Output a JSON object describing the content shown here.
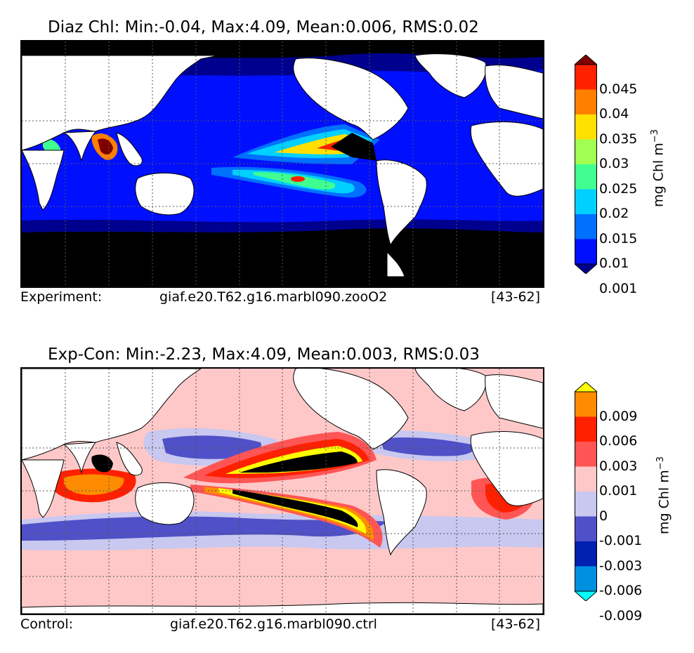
{
  "panel1": {
    "title": "Diaz Chl: Min:-0.04, Max:4.09, Mean:0.006, RMS:0.02",
    "footer_left": "Experiment:",
    "footer_mid": "giaf.e20.T62.g16.marbl090.zooO2",
    "footer_right": "[43-62]",
    "colorbar": {
      "unit_label": "mg Chl m",
      "unit_exp": "−3",
      "ticks": [
        "0.045",
        "0.04",
        "0.035",
        "0.03",
        "0.025",
        "0.02",
        "0.015",
        "0.01",
        "0.001"
      ],
      "colors": [
        "#7f0000",
        "#ff2000",
        "#ff8000",
        "#ffe000",
        "#a0ff50",
        "#40ff90",
        "#00d0ff",
        "#0070ff",
        "#0010ff",
        "#00008f"
      ]
    }
  },
  "panel2": {
    "title": "Exp-Con: Min:-2.23, Max:4.09, Mean:0.003, RMS:0.03",
    "footer_left": "Control:",
    "footer_mid": "giaf.e20.T62.g16.marbl090.ctrl",
    "footer_right": "[43-62]",
    "colorbar": {
      "unit_label": "mg Chl m",
      "unit_exp": "−3",
      "ticks": [
        "0.009",
        "0.006",
        "0.003",
        "0.001",
        "0",
        "-0.001",
        "-0.003",
        "-0.006",
        "-0.009"
      ],
      "colors": [
        "#ffff00",
        "#ff8c00",
        "#ff2000",
        "#ff5555",
        "#ffc8c8",
        "#c8c8f0",
        "#5050c8",
        "#0020b0",
        "#0090e0",
        "#00ffff"
      ]
    }
  },
  "colors": {
    "land": "#ffffff",
    "coast": "#000000",
    "grid": "#555555"
  }
}
